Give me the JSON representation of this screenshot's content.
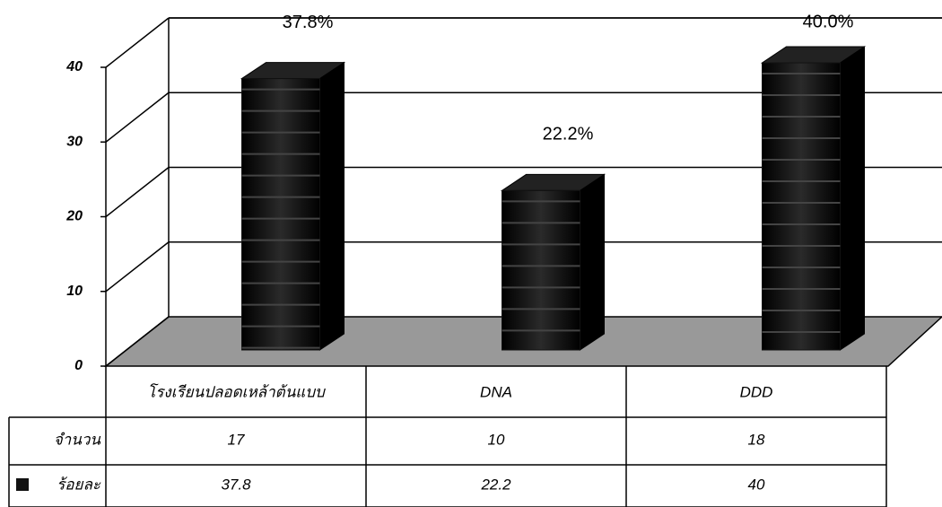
{
  "chart_data": {
    "type": "bar",
    "categories": [
      "โรงเรียนปลอดเหล้าต้นแบบ",
      "DNA",
      "DDD"
    ],
    "series": [
      {
        "name": "จำนวน",
        "values": [
          17,
          10,
          18
        ]
      },
      {
        "name": "ร้อยละ",
        "color": "#111111",
        "values": [
          37.8,
          22.2,
          40
        ],
        "value_labels": [
          "37.8%",
          "22.2%",
          "40.0%"
        ]
      }
    ],
    "ylim": [
      0,
      40
    ],
    "yticks": [
      0,
      10,
      20,
      30,
      40
    ],
    "grid": true
  }
}
